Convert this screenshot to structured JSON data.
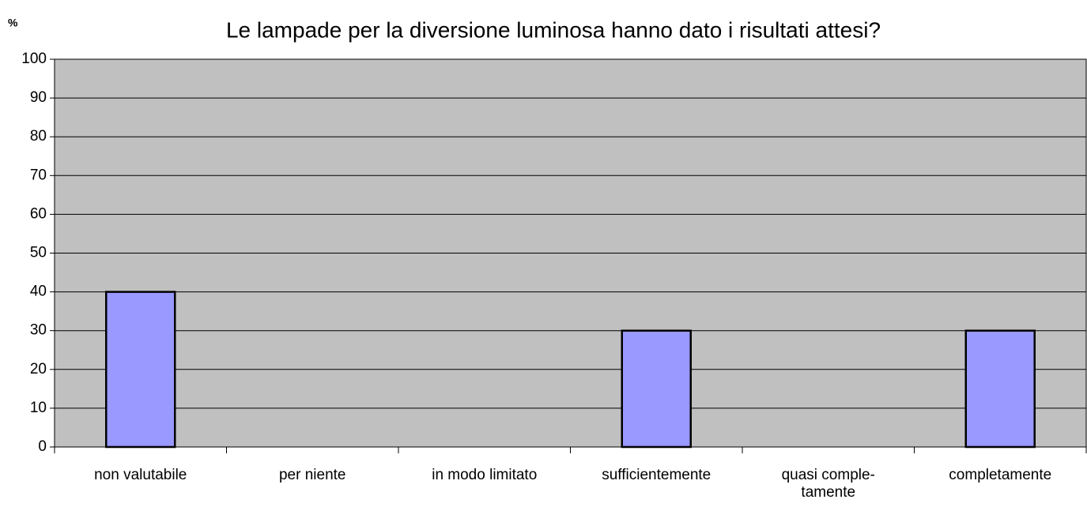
{
  "chart_data": {
    "type": "bar",
    "title": "Le lampade per la diversione luminosa hanno dato i risultati attesi?",
    "y_label": "%",
    "categories": [
      "non valutabile",
      "per niente",
      "in modo limitato",
      "sufficientemente",
      "quasi comple-\ntamente",
      "completamente"
    ],
    "values": [
      40,
      0,
      0,
      30,
      0,
      30
    ],
    "color": "#9999ff",
    "plot_background": "#c0c0c0",
    "ylim": [
      0,
      100
    ],
    "yticks": [
      0,
      10,
      20,
      30,
      40,
      50,
      60,
      70,
      80,
      90,
      100
    ],
    "grid": true
  }
}
